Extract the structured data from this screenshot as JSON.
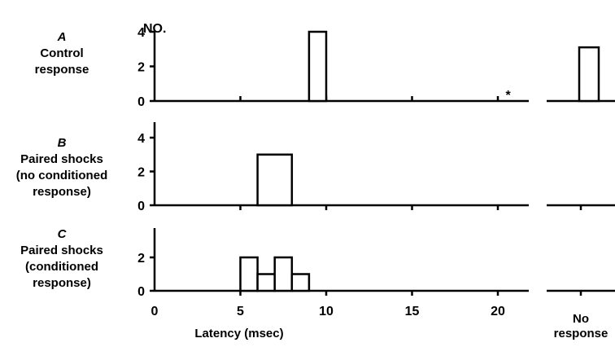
{
  "chart_data": {
    "type": "bar",
    "y_unit_label": "NO.",
    "xlabel": "Latency (msec)",
    "x_ticks": [
      0,
      5,
      10,
      15,
      20
    ],
    "no_response_label_line1": "No",
    "no_response_label_line2": "response",
    "panels": [
      {
        "letter": "A",
        "label_lines": [
          "Control",
          "response"
        ],
        "y_ticks": [
          0,
          2,
          4
        ],
        "ylim": [
          0,
          4.8
        ],
        "bins": [
          {
            "x0": 9,
            "x1": 10,
            "count": 4
          }
        ],
        "no_response_count": 3.1,
        "annotation": "*",
        "annotation_x": 20.6
      },
      {
        "letter": "B",
        "label_lines": [
          "Paired shocks",
          "(no conditioned",
          "response)"
        ],
        "y_ticks": [
          0,
          2,
          4
        ],
        "ylim": [
          0,
          4.8
        ],
        "bins": [
          {
            "x0": 6,
            "x1": 8,
            "count": 3
          }
        ],
        "no_response_count": 0
      },
      {
        "letter": "C",
        "label_lines": [
          "Paired shocks",
          "(conditioned",
          "response)"
        ],
        "y_ticks": [
          0,
          2
        ],
        "ylim": [
          0,
          3.8
        ],
        "bins": [
          {
            "x0": 5,
            "x1": 6,
            "count": 2
          },
          {
            "x0": 6,
            "x1": 7,
            "count": 1
          },
          {
            "x0": 7,
            "x1": 8,
            "count": 2
          },
          {
            "x0": 8,
            "x1": 9,
            "count": 1
          }
        ],
        "no_response_count": 0
      }
    ]
  }
}
